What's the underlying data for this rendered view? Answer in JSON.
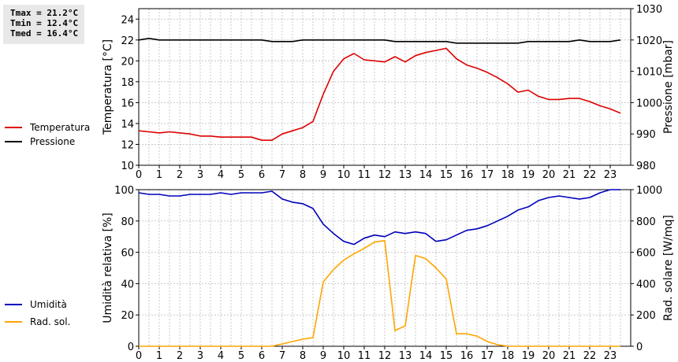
{
  "stats": {
    "tmax": "Tmax = 21.2°C",
    "tmin": "Tmin = 12.4°C",
    "tmed": "Tmed = 16.4°C"
  },
  "colors": {
    "temperature": "#dd0000",
    "pressure": "#000000",
    "humidity": "#0000bb",
    "radiation": "#ffa500",
    "grid": "#c8c8c8"
  },
  "chart_data": [
    {
      "type": "line",
      "xlim": [
        0,
        24
      ],
      "x_ticks": [
        0,
        1,
        2,
        3,
        4,
        5,
        6,
        7,
        8,
        9,
        10,
        11,
        12,
        13,
        14,
        15,
        16,
        17,
        18,
        19,
        20,
        21,
        22,
        23
      ],
      "ylabel": "Temperatura [°C]",
      "ylim": [
        10,
        25
      ],
      "y_ticks": [
        10,
        12,
        14,
        16,
        18,
        20,
        22,
        24
      ],
      "y2label": "Pressione [mbar]",
      "y2lim": [
        980,
        1030
      ],
      "y2_ticks": [
        980,
        990,
        1000,
        1010,
        1020,
        1030
      ],
      "grid": true,
      "legend": "left",
      "series": [
        {
          "name": "Temperatura",
          "axis": "left",
          "x": [
            0,
            0.5,
            1,
            1.5,
            2,
            2.5,
            3,
            3.5,
            4,
            4.5,
            5,
            5.5,
            6,
            6.5,
            7,
            7.5,
            8,
            8.5,
            9,
            9.5,
            10,
            10.5,
            11,
            11.5,
            12,
            12.5,
            13,
            13.5,
            14,
            14.5,
            15,
            15.5,
            16,
            16.5,
            17,
            17.5,
            18,
            18.5,
            19,
            19.5,
            20,
            20.5,
            21,
            21.5,
            22,
            22.5,
            23,
            23.5
          ],
          "y": [
            13.3,
            13.2,
            13.1,
            13.2,
            13.1,
            13.0,
            12.8,
            12.8,
            12.7,
            12.7,
            12.7,
            12.7,
            12.4,
            12.4,
            13.0,
            13.3,
            13.6,
            14.2,
            16.8,
            19.0,
            20.2,
            20.7,
            20.1,
            20.0,
            19.9,
            20.4,
            19.9,
            20.5,
            20.8,
            21.0,
            21.2,
            20.2,
            19.6,
            19.3,
            18.9,
            18.4,
            17.8,
            17.0,
            17.2,
            16.6,
            16.3,
            16.3,
            16.4,
            16.4,
            16.1,
            15.7,
            15.4,
            15.0
          ]
        },
        {
          "name": "Pressione",
          "axis": "right",
          "x": [
            0,
            0.5,
            1,
            1.5,
            2,
            2.5,
            3,
            3.5,
            4,
            4.5,
            5,
            5.5,
            6,
            6.5,
            7,
            7.5,
            8,
            8.5,
            9,
            9.5,
            10,
            10.5,
            11,
            11.5,
            12,
            12.5,
            13,
            13.5,
            14,
            14.5,
            15,
            15.5,
            16,
            16.5,
            17,
            17.5,
            18,
            18.5,
            19,
            19.5,
            20,
            20.5,
            21,
            21.5,
            22,
            22.5,
            23,
            23.5
          ],
          "y": [
            1020,
            1020.5,
            1020,
            1020,
            1020,
            1020,
            1020,
            1020,
            1020,
            1020,
            1020,
            1020,
            1020,
            1019.5,
            1019.5,
            1019.5,
            1020,
            1020,
            1020,
            1020,
            1020,
            1020,
            1020,
            1020,
            1020,
            1019.5,
            1019.5,
            1019.5,
            1019.5,
            1019.5,
            1019.5,
            1019,
            1019,
            1019,
            1019,
            1019,
            1019,
            1019,
            1019.5,
            1019.5,
            1019.5,
            1019.5,
            1019.5,
            1020,
            1019.5,
            1019.5,
            1019.5,
            1020
          ]
        }
      ]
    },
    {
      "type": "line",
      "xlim": [
        0,
        24
      ],
      "x_ticks": [
        0,
        1,
        2,
        3,
        4,
        5,
        6,
        7,
        8,
        9,
        10,
        11,
        12,
        13,
        14,
        15,
        16,
        17,
        18,
        19,
        20,
        21,
        22,
        23
      ],
      "ylabel": "Umidità relativa [%]",
      "ylim": [
        0,
        100
      ],
      "y_ticks": [
        0,
        20,
        40,
        60,
        80,
        100
      ],
      "y2label": "Rad. solare [W/mq]",
      "y2lim": [
        0,
        1000
      ],
      "y2_ticks": [
        0,
        200,
        400,
        600,
        800,
        1000
      ],
      "grid": true,
      "legend": "left",
      "series": [
        {
          "name": "Umidità",
          "axis": "left",
          "x": [
            0,
            0.5,
            1,
            1.5,
            2,
            2.5,
            3,
            3.5,
            4,
            4.5,
            5,
            5.5,
            6,
            6.5,
            7,
            7.5,
            8,
            8.5,
            9,
            9.5,
            10,
            10.5,
            11,
            11.5,
            12,
            12.5,
            13,
            13.5,
            14,
            14.5,
            15,
            15.5,
            16,
            16.5,
            17,
            17.5,
            18,
            18.5,
            19,
            19.5,
            20,
            20.5,
            21,
            21.5,
            22,
            22.5,
            23,
            23.5
          ],
          "y": [
            98,
            97,
            97,
            96,
            96,
            97,
            97,
            97,
            98,
            97,
            98,
            98,
            98,
            99,
            94,
            92,
            91,
            88,
            78,
            72,
            67,
            65,
            69,
            71,
            70,
            73,
            72,
            73,
            72,
            67,
            68,
            71,
            74,
            75,
            77,
            80,
            83,
            87,
            89,
            93,
            95,
            96,
            95,
            94,
            95,
            98,
            100,
            100
          ]
        },
        {
          "name": "Rad. sol.",
          "axis": "right",
          "x": [
            0,
            0.5,
            1,
            1.5,
            2,
            2.5,
            3,
            3.5,
            4,
            4.5,
            5,
            5.5,
            6,
            6.5,
            7,
            7.5,
            8,
            8.5,
            9,
            9.5,
            10,
            10.5,
            11,
            11.5,
            12,
            12.5,
            13,
            13.5,
            14,
            14.5,
            15,
            15.5,
            16,
            16.5,
            17,
            17.5,
            18,
            18.5,
            19,
            19.5,
            20,
            20.5,
            21,
            21.5,
            22,
            22.5,
            23,
            23.5
          ],
          "y": [
            0,
            0,
            0,
            0,
            0,
            0,
            0,
            0,
            0,
            0,
            0,
            0,
            0,
            0,
            15,
            30,
            45,
            55,
            410,
            490,
            550,
            590,
            625,
            665,
            675,
            100,
            130,
            580,
            560,
            500,
            430,
            80,
            80,
            65,
            30,
            10,
            0,
            0,
            0,
            0,
            0,
            0,
            0,
            0,
            0,
            0,
            0,
            0
          ]
        }
      ]
    }
  ]
}
